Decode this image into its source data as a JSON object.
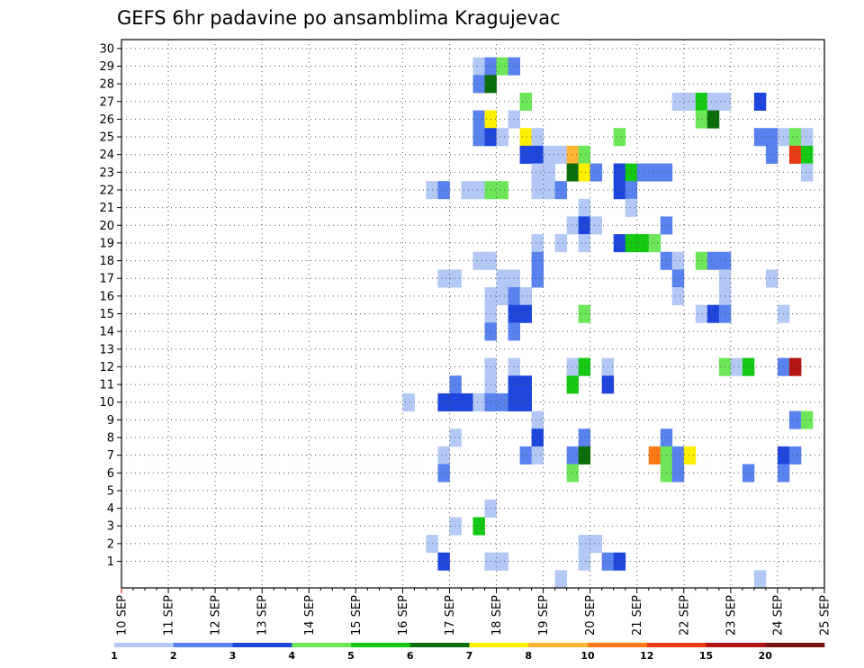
{
  "chart_data": {
    "type": "heatmap",
    "title": "GEFS 6hr padavine po ansamblima Kragujevac",
    "xlabel": "",
    "ylabel": "",
    "x_ticks": [
      "10 SEP",
      "11 SEP",
      "12 SEP",
      "13 SEP",
      "14 SEP",
      "15 SEP",
      "16 SEP",
      "17 SEP",
      "18 SEP",
      "19 SEP",
      "20 SEP",
      "21 SEP",
      "22 SEP",
      "23 SEP",
      "24 SEP",
      "25 SEP"
    ],
    "x_range": [
      "10 SEP 00Z",
      "25 SEP 00Z"
    ],
    "x_step": "6hr",
    "y_ticks": [
      "1",
      "2",
      "3",
      "4",
      "5",
      "6",
      "7",
      "8",
      "9",
      "10",
      "11",
      "12",
      "13",
      "14",
      "15",
      "16",
      "17",
      "18",
      "19",
      "20",
      "21",
      "22",
      "23",
      "24",
      "25",
      "26",
      "27",
      "28",
      "29",
      "30"
    ],
    "y_range": [
      0,
      30
    ],
    "grid": true,
    "colorbar": {
      "labels": [
        "1",
        "2",
        "3",
        "4",
        "5",
        "6",
        "7",
        "8",
        "10",
        "12",
        "15",
        "20"
      ],
      "colors": [
        "#b4c8f5",
        "#5a82ee",
        "#1e46dc",
        "#6ee65a",
        "#14c814",
        "#0a6e0a",
        "#fff000",
        "#ffb432",
        "#ff7814",
        "#e63c14",
        "#b41414",
        "#781414"
      ]
    },
    "cells": [
      {
        "time": "16 SEP 00Z",
        "member": 10,
        "cls": 1
      },
      {
        "time": "16 SEP 12Z",
        "member": 22,
        "cls": 1
      },
      {
        "time": "16 SEP 12Z",
        "member": 2,
        "cls": 1
      },
      {
        "time": "16 SEP 18Z",
        "member": 22,
        "cls": 2
      },
      {
        "time": "16 SEP 18Z",
        "member": 1,
        "cls": 3
      },
      {
        "time": "16 SEP 18Z",
        "member": 17,
        "cls": 1
      },
      {
        "time": "16 SEP 18Z",
        "member": 10,
        "cls": 3
      },
      {
        "time": "16 SEP 18Z",
        "member": 7,
        "cls": 1
      },
      {
        "time": "16 SEP 18Z",
        "member": 6,
        "cls": 2
      },
      {
        "time": "17 SEP 00Z",
        "member": 17,
        "cls": 1
      },
      {
        "time": "17 SEP 00Z",
        "member": 11,
        "cls": 2
      },
      {
        "time": "17 SEP 00Z",
        "member": 10,
        "cls": 3
      },
      {
        "time": "17 SEP 00Z",
        "member": 8,
        "cls": 1
      },
      {
        "time": "17 SEP 00Z",
        "member": 3,
        "cls": 1
      },
      {
        "time": "17 SEP 06Z",
        "member": 10,
        "cls": 3
      },
      {
        "time": "17 SEP 06Z",
        "member": 22,
        "cls": 1
      },
      {
        "time": "17 SEP 12Z",
        "member": 29,
        "cls": 1
      },
      {
        "time": "17 SEP 12Z",
        "member": 28,
        "cls": 2
      },
      {
        "time": "17 SEP 12Z",
        "member": 26,
        "cls": 2
      },
      {
        "time": "17 SEP 12Z",
        "member": 25,
        "cls": 2
      },
      {
        "time": "17 SEP 12Z",
        "member": 22,
        "cls": 1
      },
      {
        "time": "17 SEP 12Z",
        "member": 18,
        "cls": 1
      },
      {
        "time": "17 SEP 12Z",
        "member": 10,
        "cls": 1
      },
      {
        "time": "17 SEP 12Z",
        "member": 3,
        "cls": 5
      },
      {
        "time": "17 SEP 18Z",
        "member": 29,
        "cls": 2
      },
      {
        "time": "17 SEP 18Z",
        "member": 28,
        "cls": 6
      },
      {
        "time": "17 SEP 18Z",
        "member": 26,
        "cls": 7
      },
      {
        "time": "17 SEP 18Z",
        "member": 25,
        "cls": 3
      },
      {
        "time": "17 SEP 18Z",
        "member": 22,
        "cls": 4
      },
      {
        "time": "17 SEP 18Z",
        "member": 18,
        "cls": 1
      },
      {
        "time": "17 SEP 18Z",
        "member": 16,
        "cls": 1
      },
      {
        "time": "17 SEP 18Z",
        "member": 15,
        "cls": 1
      },
      {
        "time": "17 SEP 18Z",
        "member": 14,
        "cls": 2
      },
      {
        "time": "17 SEP 18Z",
        "member": 12,
        "cls": 1
      },
      {
        "time": "17 SEP 18Z",
        "member": 11,
        "cls": 1
      },
      {
        "time": "17 SEP 18Z",
        "member": 10,
        "cls": 2
      },
      {
        "time": "17 SEP 18Z",
        "member": 4,
        "cls": 1
      },
      {
        "time": "17 SEP 18Z",
        "member": 1,
        "cls": 1
      },
      {
        "time": "18 SEP 00Z",
        "member": 29,
        "cls": 4
      },
      {
        "time": "18 SEP 00Z",
        "member": 25,
        "cls": 1
      },
      {
        "time": "18 SEP 00Z",
        "member": 22,
        "cls": 4
      },
      {
        "time": "18 SEP 00Z",
        "member": 17,
        "cls": 1
      },
      {
        "time": "18 SEP 00Z",
        "member": 16,
        "cls": 1
      },
      {
        "time": "18 SEP 00Z",
        "member": 10,
        "cls": 2
      },
      {
        "time": "18 SEP 00Z",
        "member": 1,
        "cls": 1
      },
      {
        "time": "18 SEP 06Z",
        "member": 29,
        "cls": 2
      },
      {
        "time": "18 SEP 06Z",
        "member": 26,
        "cls": 1
      },
      {
        "time": "18 SEP 06Z",
        "member": 17,
        "cls": 1
      },
      {
        "time": "18 SEP 06Z",
        "member": 16,
        "cls": 2
      },
      {
        "time": "18 SEP 06Z",
        "member": 15,
        "cls": 3
      },
      {
        "time": "18 SEP 06Z",
        "member": 14,
        "cls": 2
      },
      {
        "time": "18 SEP 06Z",
        "member": 12,
        "cls": 1
      },
      {
        "time": "18 SEP 06Z",
        "member": 11,
        "cls": 3
      },
      {
        "time": "18 SEP 06Z",
        "member": 10,
        "cls": 3
      },
      {
        "time": "18 SEP 12Z",
        "member": 27,
        "cls": 4
      },
      {
        "time": "18 SEP 12Z",
        "member": 25,
        "cls": 7
      },
      {
        "time": "18 SEP 12Z",
        "member": 24,
        "cls": 3
      },
      {
        "time": "18 SEP 12Z",
        "member": 16,
        "cls": 1
      },
      {
        "time": "18 SEP 12Z",
        "member": 15,
        "cls": 3
      },
      {
        "time": "18 SEP 12Z",
        "member": 11,
        "cls": 3
      },
      {
        "time": "18 SEP 12Z",
        "member": 10,
        "cls": 3
      },
      {
        "time": "18 SEP 12Z",
        "member": 7,
        "cls": 2
      },
      {
        "time": "18 SEP 18Z",
        "member": 25,
        "cls": 1
      },
      {
        "time": "18 SEP 18Z",
        "member": 24,
        "cls": 3
      },
      {
        "time": "18 SEP 18Z",
        "member": 23,
        "cls": 1
      },
      {
        "time": "18 SEP 18Z",
        "member": 22,
        "cls": 1
      },
      {
        "time": "18 SEP 18Z",
        "member": 19,
        "cls": 1
      },
      {
        "time": "18 SEP 18Z",
        "member": 18,
        "cls": 2
      },
      {
        "time": "18 SEP 18Z",
        "member": 17,
        "cls": 2
      },
      {
        "time": "18 SEP 18Z",
        "member": 9,
        "cls": 1
      },
      {
        "time": "18 SEP 18Z",
        "member": 8,
        "cls": 3
      },
      {
        "time": "18 SEP 18Z",
        "member": 7,
        "cls": 1
      },
      {
        "time": "19 SEP 00Z",
        "member": 24,
        "cls": 1
      },
      {
        "time": "19 SEP 00Z",
        "member": 23,
        "cls": 1
      },
      {
        "time": "19 SEP 00Z",
        "member": 22,
        "cls": 1
      },
      {
        "time": "19 SEP 06Z",
        "member": 24,
        "cls": 1
      },
      {
        "time": "19 SEP 06Z",
        "member": 22,
        "cls": 2
      },
      {
        "time": "19 SEP 06Z",
        "member": 19,
        "cls": 1
      },
      {
        "time": "19 SEP 06Z",
        "member": 0,
        "cls": 1
      },
      {
        "time": "19 SEP 12Z",
        "member": 24,
        "cls": 8
      },
      {
        "time": "19 SEP 12Z",
        "member": 23,
        "cls": 6
      },
      {
        "time": "19 SEP 12Z",
        "member": 20,
        "cls": 1
      },
      {
        "time": "19 SEP 12Z",
        "member": 12,
        "cls": 1
      },
      {
        "time": "19 SEP 12Z",
        "member": 11,
        "cls": 5
      },
      {
        "time": "19 SEP 12Z",
        "member": 7,
        "cls": 2
      },
      {
        "time": "19 SEP 12Z",
        "member": 6,
        "cls": 4
      },
      {
        "time": "19 SEP 18Z",
        "member": 24,
        "cls": 4
      },
      {
        "time": "19 SEP 18Z",
        "member": 23,
        "cls": 7
      },
      {
        "time": "19 SEP 18Z",
        "member": 21,
        "cls": 1
      },
      {
        "time": "19 SEP 18Z",
        "member": 20,
        "cls": 3
      },
      {
        "time": "19 SEP 18Z",
        "member": 19,
        "cls": 1
      },
      {
        "time": "19 SEP 18Z",
        "member": 15,
        "cls": 4
      },
      {
        "time": "19 SEP 18Z",
        "member": 12,
        "cls": 5
      },
      {
        "time": "19 SEP 18Z",
        "member": 8,
        "cls": 2
      },
      {
        "time": "19 SEP 18Z",
        "member": 7,
        "cls": 6
      },
      {
        "time": "19 SEP 18Z",
        "member": 2,
        "cls": 1
      },
      {
        "time": "19 SEP 18Z",
        "member": 1,
        "cls": 1
      },
      {
        "time": "20 SEP 00Z",
        "member": 23,
        "cls": 2
      },
      {
        "time": "20 SEP 00Z",
        "member": 20,
        "cls": 1
      },
      {
        "time": "20 SEP 00Z",
        "member": 2,
        "cls": 1
      },
      {
        "time": "20 SEP 06Z",
        "member": 12,
        "cls": 1
      },
      {
        "time": "20 SEP 06Z",
        "member": 11,
        "cls": 3
      },
      {
        "time": "20 SEP 06Z",
        "member": 1,
        "cls": 2
      },
      {
        "time": "20 SEP 12Z",
        "member": 25,
        "cls": 4
      },
      {
        "time": "20 SEP 12Z",
        "member": 23,
        "cls": 3
      },
      {
        "time": "20 SEP 12Z",
        "member": 22,
        "cls": 3
      },
      {
        "time": "20 SEP 12Z",
        "member": 19,
        "cls": 3
      },
      {
        "time": "20 SEP 12Z",
        "member": 1,
        "cls": 3
      },
      {
        "time": "20 SEP 18Z",
        "member": 23,
        "cls": 5
      },
      {
        "time": "20 SEP 18Z",
        "member": 22,
        "cls": 2
      },
      {
        "time": "20 SEP 18Z",
        "member": 21,
        "cls": 1
      },
      {
        "time": "20 SEP 18Z",
        "member": 19,
        "cls": 5
      },
      {
        "time": "21 SEP 00Z",
        "member": 23,
        "cls": 2
      },
      {
        "time": "21 SEP 00Z",
        "member": 19,
        "cls": 5
      },
      {
        "time": "21 SEP 06Z",
        "member": 23,
        "cls": 2
      },
      {
        "time": "21 SEP 06Z",
        "member": 19,
        "cls": 4
      },
      {
        "time": "21 SEP 06Z",
        "member": 7,
        "cls": 9
      },
      {
        "time": "21 SEP 12Z",
        "member": 23,
        "cls": 2
      },
      {
        "time": "21 SEP 12Z",
        "member": 20,
        "cls": 2
      },
      {
        "time": "21 SEP 12Z",
        "member": 18,
        "cls": 2
      },
      {
        "time": "21 SEP 12Z",
        "member": 8,
        "cls": 2
      },
      {
        "time": "21 SEP 12Z",
        "member": 7,
        "cls": 4
      },
      {
        "time": "21 SEP 12Z",
        "member": 6,
        "cls": 4
      },
      {
        "time": "21 SEP 18Z",
        "member": 27,
        "cls": 1
      },
      {
        "time": "21 SEP 18Z",
        "member": 18,
        "cls": 1
      },
      {
        "time": "21 SEP 18Z",
        "member": 17,
        "cls": 2
      },
      {
        "time": "21 SEP 18Z",
        "member": 16,
        "cls": 1
      },
      {
        "time": "21 SEP 18Z",
        "member": 7,
        "cls": 2
      },
      {
        "time": "21 SEP 18Z",
        "member": 6,
        "cls": 2
      },
      {
        "time": "22 SEP 00Z",
        "member": 27,
        "cls": 1
      },
      {
        "time": "22 SEP 00Z",
        "member": 7,
        "cls": 7
      },
      {
        "time": "22 SEP 06Z",
        "member": 27,
        "cls": 5
      },
      {
        "time": "22 SEP 06Z",
        "member": 26,
        "cls": 4
      },
      {
        "time": "22 SEP 06Z",
        "member": 18,
        "cls": 4
      },
      {
        "time": "22 SEP 06Z",
        "member": 15,
        "cls": 1
      },
      {
        "time": "22 SEP 12Z",
        "member": 27,
        "cls": 1
      },
      {
        "time": "22 SEP 12Z",
        "member": 26,
        "cls": 6
      },
      {
        "time": "22 SEP 12Z",
        "member": 18,
        "cls": 2
      },
      {
        "time": "22 SEP 12Z",
        "member": 15,
        "cls": 3
      },
      {
        "time": "22 SEP 18Z",
        "member": 27,
        "cls": 1
      },
      {
        "time": "22 SEP 18Z",
        "member": 18,
        "cls": 2
      },
      {
        "time": "22 SEP 18Z",
        "member": 17,
        "cls": 1
      },
      {
        "time": "22 SEP 18Z",
        "member": 16,
        "cls": 1
      },
      {
        "time": "22 SEP 18Z",
        "member": 15,
        "cls": 2
      },
      {
        "time": "22 SEP 18Z",
        "member": 12,
        "cls": 4
      },
      {
        "time": "23 SEP 00Z",
        "member": 12,
        "cls": 1
      },
      {
        "time": "23 SEP 06Z",
        "member": 12,
        "cls": 5
      },
      {
        "time": "23 SEP 06Z",
        "member": 6,
        "cls": 2
      },
      {
        "time": "23 SEP 12Z",
        "member": 27,
        "cls": 3
      },
      {
        "time": "23 SEP 12Z",
        "member": 25,
        "cls": 2
      },
      {
        "time": "23 SEP 12Z",
        "member": 0,
        "cls": 1
      },
      {
        "time": "23 SEP 18Z",
        "member": 25,
        "cls": 2
      },
      {
        "time": "23 SEP 18Z",
        "member": 24,
        "cls": 2
      },
      {
        "time": "23 SEP 18Z",
        "member": 17,
        "cls": 1
      },
      {
        "time": "24 SEP 00Z",
        "member": 25,
        "cls": 1
      },
      {
        "time": "24 SEP 00Z",
        "member": 15,
        "cls": 1
      },
      {
        "time": "24 SEP 00Z",
        "member": 12,
        "cls": 2
      },
      {
        "time": "24 SEP 00Z",
        "member": 7,
        "cls": 3
      },
      {
        "time": "24 SEP 00Z",
        "member": 6,
        "cls": 2
      },
      {
        "time": "24 SEP 06Z",
        "member": 25,
        "cls": 4
      },
      {
        "time": "24 SEP 06Z",
        "member": 24,
        "cls": 10
      },
      {
        "time": "24 SEP 06Z",
        "member": 12,
        "cls": 11
      },
      {
        "time": "24 SEP 06Z",
        "member": 9,
        "cls": 2
      },
      {
        "time": "24 SEP 06Z",
        "member": 7,
        "cls": 2
      },
      {
        "time": "24 SEP 12Z",
        "member": 25,
        "cls": 1
      },
      {
        "time": "24 SEP 12Z",
        "member": 24,
        "cls": 5
      },
      {
        "time": "24 SEP 12Z",
        "member": 23,
        "cls": 1
      },
      {
        "time": "24 SEP 12Z",
        "member": 9,
        "cls": 4
      }
    ]
  }
}
